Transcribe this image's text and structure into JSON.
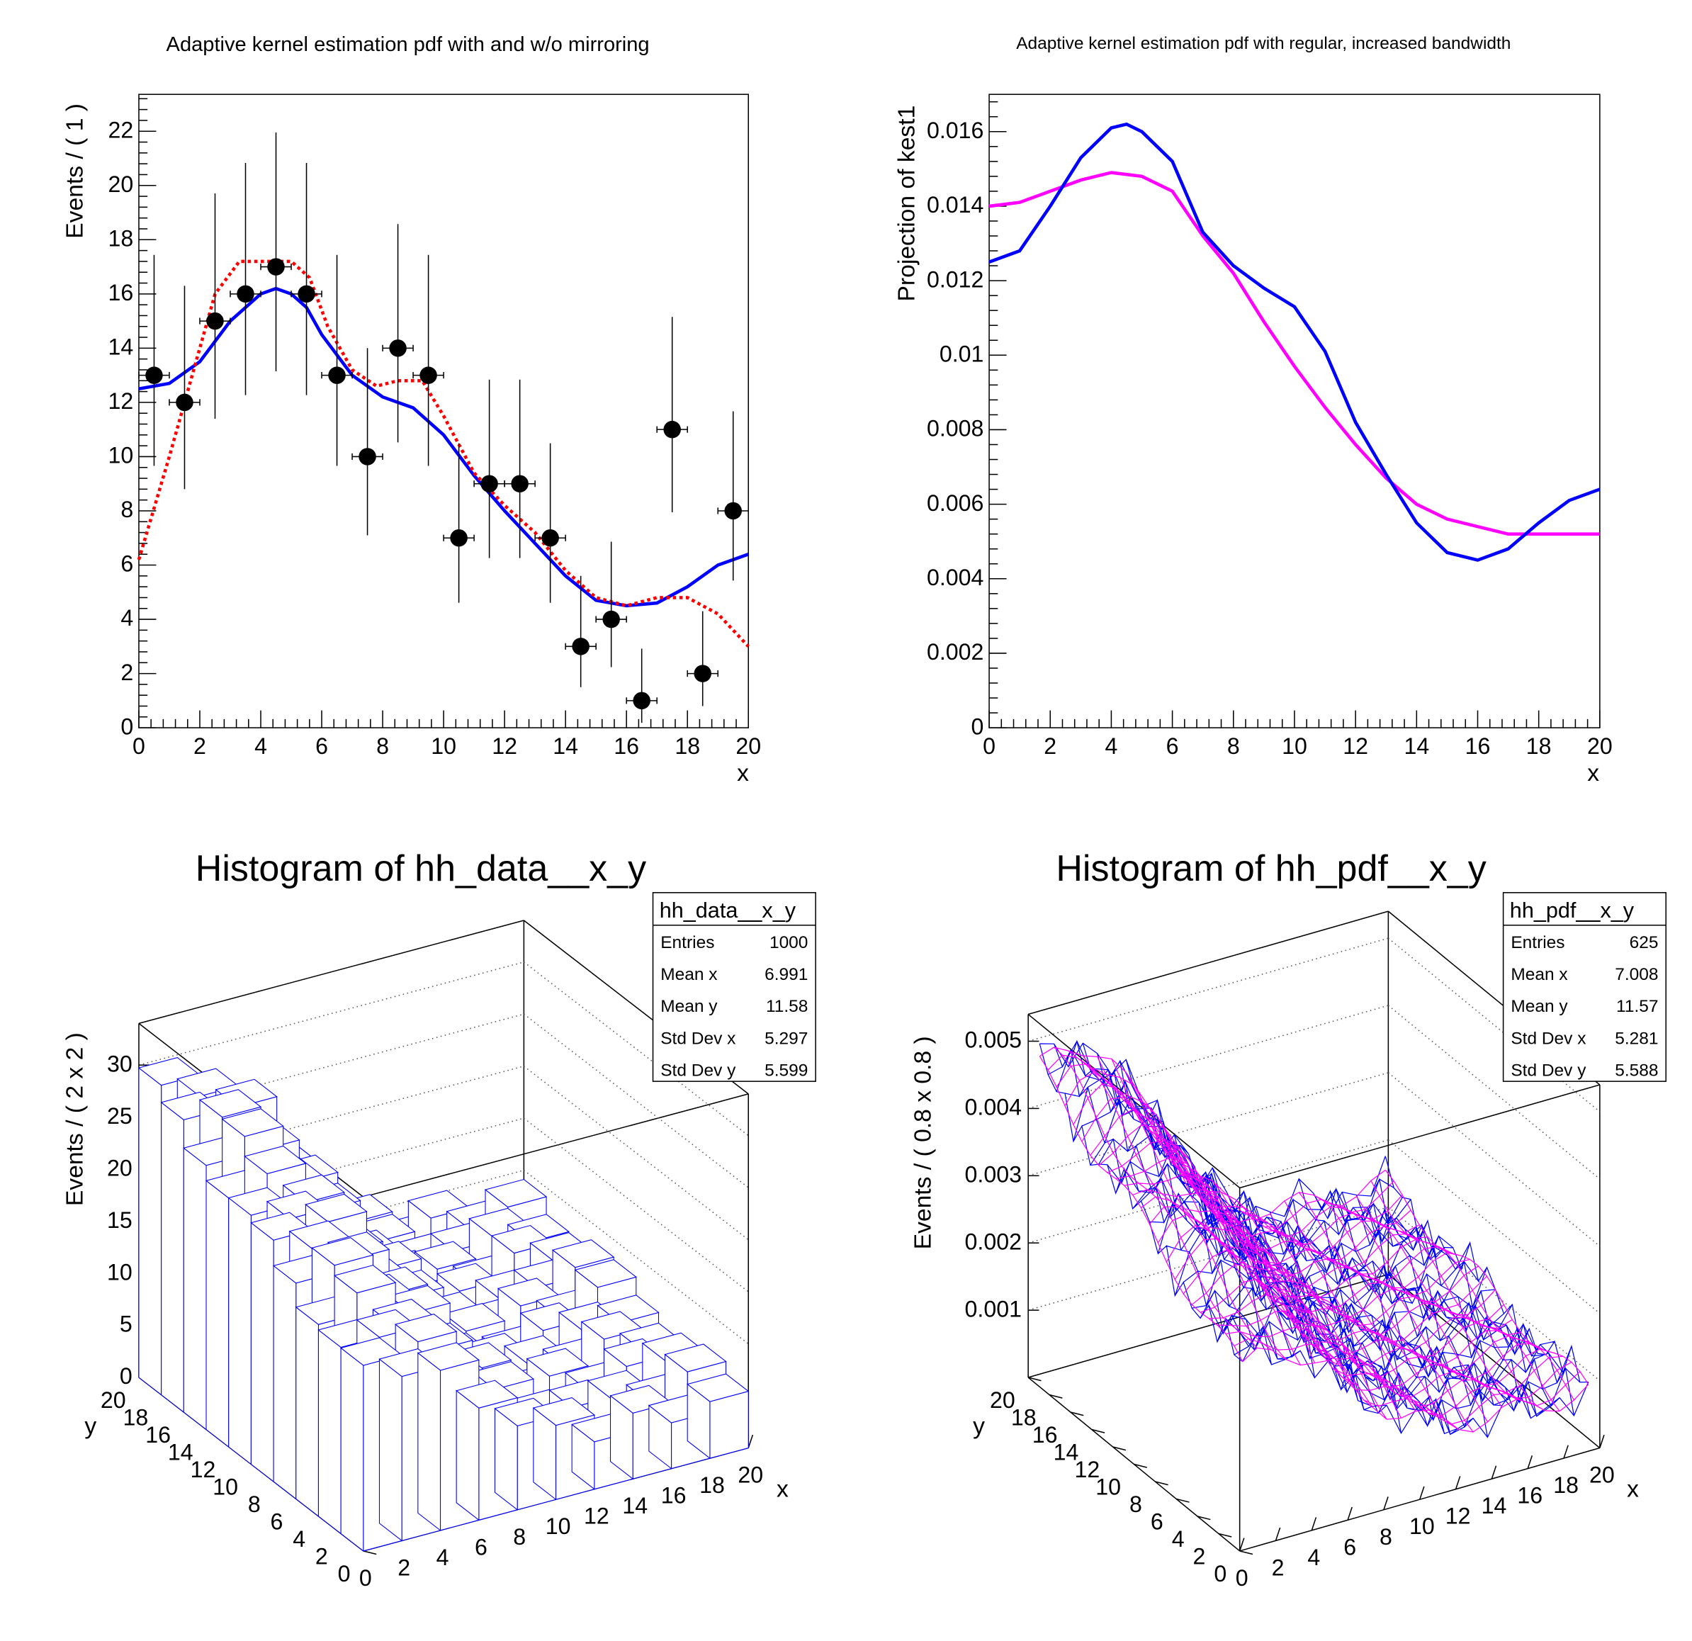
{
  "chart_data": [
    {
      "type": "scatter",
      "title": "Adaptive kernel estimation pdf with and w/o mirroring",
      "xlabel": "x",
      "ylabel": "Events / ( 1 )",
      "xlim": [
        0,
        20
      ],
      "ylim": [
        0,
        23.4
      ],
      "xticks": [
        "0",
        "2",
        "4",
        "6",
        "8",
        "10",
        "12",
        "14",
        "16",
        "18",
        "20"
      ],
      "yticks": [
        "0",
        "2",
        "4",
        "6",
        "8",
        "10",
        "12",
        "14",
        "16",
        "18",
        "20",
        "22"
      ],
      "data_points": {
        "x": [
          0.5,
          1.5,
          2.5,
          3.5,
          4.5,
          5.5,
          6.5,
          7.5,
          8.5,
          9.5,
          10.5,
          11.5,
          12.5,
          13.5,
          14.5,
          15.5,
          16.5,
          17.5,
          18.5,
          19.5
        ],
        "y": [
          13,
          12,
          15,
          16,
          17,
          16,
          13,
          10,
          14,
          13,
          7,
          9,
          9,
          7,
          3,
          4,
          1,
          11,
          2,
          8
        ]
      },
      "series": [
        {
          "color": "#0000ff",
          "style": "solid",
          "x": [
            0,
            1,
            2,
            3,
            4,
            4.5,
            5,
            5.5,
            6,
            7,
            8,
            9,
            10,
            11,
            12,
            13,
            14,
            15,
            16,
            17,
            18,
            19,
            20
          ],
          "y": [
            12.5,
            12.7,
            13.5,
            15,
            16,
            16.2,
            16,
            15.5,
            14.5,
            13,
            12.2,
            11.8,
            10.8,
            9.3,
            8,
            6.8,
            5.6,
            4.7,
            4.5,
            4.6,
            5.2,
            6,
            6.4
          ]
        },
        {
          "color": "#ff0000",
          "style": "dotted",
          "x": [
            0,
            1,
            2,
            2.5,
            3.3,
            4,
            5,
            5.6,
            6.2,
            7,
            7.8,
            8.5,
            9.3,
            10,
            11,
            12,
            13,
            14,
            15,
            16,
            17,
            18,
            19,
            20
          ],
          "y": [
            6.2,
            10,
            14,
            16,
            17.2,
            17.2,
            17.2,
            16.6,
            14.8,
            13.2,
            12.6,
            12.8,
            12.8,
            11.5,
            9.4,
            8.2,
            7.2,
            5.8,
            4.8,
            4.5,
            4.8,
            4.8,
            4.2,
            3
          ]
        }
      ]
    },
    {
      "type": "line",
      "title": "Adaptive kernel estimation pdf with regular, increased bandwidth",
      "xlabel": "x",
      "ylabel": "Projection of kest1",
      "xlim": [
        0,
        20
      ],
      "ylim": [
        0,
        0.017
      ],
      "xticks": [
        "0",
        "2",
        "4",
        "6",
        "8",
        "10",
        "12",
        "14",
        "16",
        "18",
        "20"
      ],
      "yticks": [
        "0",
        "0.002",
        "0.004",
        "0.006",
        "0.008",
        "0.01",
        "0.012",
        "0.014",
        "0.016"
      ],
      "series": [
        {
          "color": "#0000ff",
          "x": [
            0,
            1,
            2,
            3,
            4,
            4.5,
            5,
            6,
            7,
            8,
            9,
            10,
            11,
            12,
            13,
            14,
            15,
            16,
            17,
            18,
            19,
            20
          ],
          "y": [
            0.0125,
            0.0128,
            0.014,
            0.0153,
            0.0161,
            0.0162,
            0.016,
            0.0152,
            0.0133,
            0.0124,
            0.0118,
            0.0113,
            0.0101,
            0.0082,
            0.0068,
            0.0055,
            0.0047,
            0.0045,
            0.0048,
            0.0055,
            0.0061,
            0.0064
          ]
        },
        {
          "color": "#ff00ff",
          "x": [
            0,
            1,
            2,
            3,
            4,
            5,
            6,
            7,
            8,
            9,
            10,
            11,
            12,
            13,
            14,
            15,
            16,
            17,
            18,
            19,
            20
          ],
          "y": [
            0.014,
            0.0141,
            0.0144,
            0.0147,
            0.0149,
            0.0148,
            0.0144,
            0.0132,
            0.0122,
            0.0109,
            0.0097,
            0.0086,
            0.0076,
            0.0067,
            0.006,
            0.0056,
            0.0054,
            0.0052,
            0.0052,
            0.0052,
            0.0052
          ]
        }
      ]
    },
    {
      "type": "lego3d",
      "title": "Histogram of hh_data__x_y",
      "xlabel": "x",
      "ylabel": "y",
      "zlabel": "Events / ( 2 x 2 )",
      "xticks": [
        "0",
        "2",
        "4",
        "6",
        "8",
        "10",
        "12",
        "14",
        "16",
        "18",
        "20"
      ],
      "yticks": [
        "0",
        "2",
        "4",
        "6",
        "8",
        "10",
        "12",
        "14",
        "16",
        "18",
        "20"
      ],
      "zticks": [
        "0",
        "5",
        "10",
        "15",
        "20",
        "25",
        "30"
      ],
      "color": "#0000ff",
      "stats": {
        "name": "hh_data__x_y",
        "rows": [
          [
            "Entries",
            "1000"
          ],
          [
            "Mean x",
            "6.991"
          ],
          [
            "Mean y",
            "11.58"
          ],
          [
            "Std Dev x",
            "5.297"
          ],
          [
            "Std Dev y",
            "5.599"
          ]
        ]
      }
    },
    {
      "type": "surface3d",
      "title": "Histogram of hh_pdf__x_y",
      "xlabel": "x",
      "ylabel": "y",
      "zlabel": "Events / ( 0.8 x 0.8 )",
      "xticks": [
        "0",
        "2",
        "4",
        "6",
        "8",
        "10",
        "12",
        "14",
        "16",
        "18",
        "20"
      ],
      "yticks": [
        "0",
        "2",
        "4",
        "6",
        "8",
        "10",
        "12",
        "14",
        "16",
        "18",
        "20"
      ],
      "zticks": [
        "0.001",
        "0.002",
        "0.003",
        "0.004",
        "0.005"
      ],
      "colors": [
        "#0000ff",
        "#ff00ff"
      ],
      "stats": {
        "name": "hh_pdf__x_y",
        "rows": [
          [
            "Entries",
            "625"
          ],
          [
            "Mean x",
            "7.008"
          ],
          [
            "Mean y",
            "11.57"
          ],
          [
            "Std Dev x",
            "5.281"
          ],
          [
            "Std Dev y",
            "5.588"
          ]
        ]
      }
    }
  ]
}
